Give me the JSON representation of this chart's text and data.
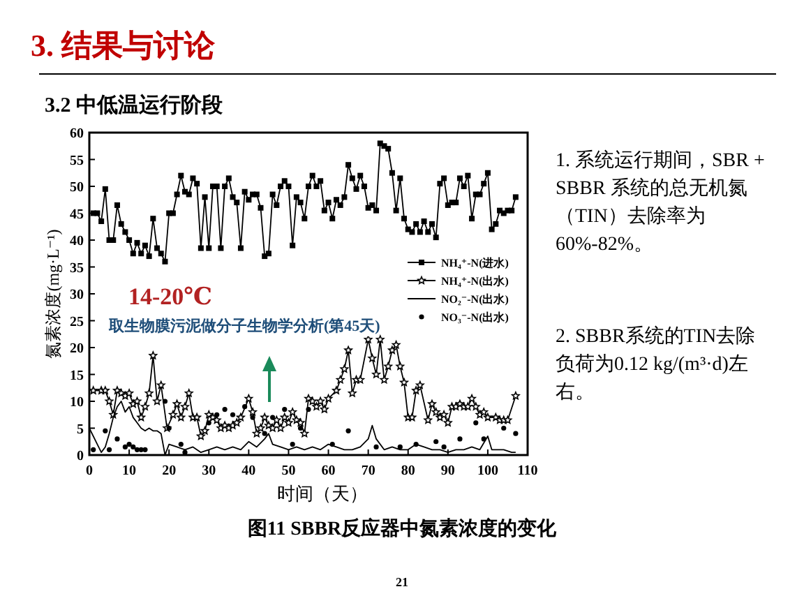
{
  "chart_data": {
    "type": "line",
    "title": "3. 结果与讨论",
    "subtitle": "3.2 中低温运行阶段",
    "xlabel": "时间（天）",
    "ylabel": "氮素浓度(mg·L⁻¹)",
    "xlim": [
      0,
      110
    ],
    "xticks": [
      0,
      10,
      20,
      30,
      40,
      50,
      60,
      70,
      80,
      90,
      100,
      110
    ],
    "ylim": [
      0,
      60
    ],
    "yticks": [
      0,
      5,
      10,
      15,
      20,
      25,
      30,
      35,
      40,
      45,
      50,
      55,
      60
    ],
    "grid": false,
    "legend": "right",
    "series": [
      {
        "name": "NH₄⁺-N(进水)",
        "type": "line",
        "marker": "square",
        "color": "#000000",
        "x": [
          1,
          2,
          3,
          4,
          5,
          6,
          7,
          8,
          9,
          10,
          11,
          12,
          13,
          14,
          15,
          16,
          17,
          18,
          19,
          20,
          21,
          22,
          23,
          24,
          25,
          26,
          27,
          28,
          29,
          30,
          31,
          32,
          33,
          34,
          35,
          36,
          37,
          38,
          39,
          40,
          41,
          42,
          43,
          44,
          45,
          46,
          47,
          48,
          49,
          50,
          51,
          52,
          53,
          54,
          55,
          56,
          57,
          58,
          59,
          60,
          61,
          62,
          63,
          64,
          65,
          66,
          67,
          68,
          69,
          70,
          71,
          72,
          73,
          74,
          75,
          76,
          77,
          78,
          79,
          80,
          81,
          82,
          83,
          84,
          85,
          86,
          87,
          88,
          89,
          90,
          91,
          92,
          93,
          94,
          95,
          96,
          97,
          98,
          99,
          100,
          101,
          102,
          103,
          104,
          105,
          106,
          107
        ],
        "values": [
          45,
          45,
          43.5,
          49.5,
          40,
          40,
          46.5,
          43,
          41.5,
          40,
          37.5,
          39.5,
          37.5,
          39,
          37,
          44,
          38.5,
          37.5,
          36,
          45,
          45,
          48.5,
          52,
          49,
          48.5,
          51.5,
          50.5,
          38.5,
          48,
          38.5,
          50,
          50,
          38.5,
          50,
          51.5,
          48,
          47,
          38.5,
          49,
          47.5,
          48.5,
          48.5,
          46,
          37,
          37.5,
          48.5,
          46.5,
          50,
          51,
          50,
          39,
          48,
          47,
          44,
          50,
          52,
          50,
          51,
          45.5,
          47,
          44,
          47.5,
          46.5,
          48,
          54,
          51.5,
          49.5,
          52,
          50,
          46,
          46.5,
          45.5,
          58,
          57.5,
          57,
          52.5,
          45.5,
          51.5,
          44,
          42,
          41.5,
          43,
          41.5,
          43.5,
          41.5,
          43,
          40.5,
          50.5,
          51.5,
          46.5,
          47,
          47,
          51.5,
          50,
          52,
          44,
          48.5,
          48.5,
          50.5,
          52.5,
          42,
          43,
          45.5,
          45,
          45.5,
          45.5,
          48
        ]
      },
      {
        "name": "NH₄⁺-N(出水)",
        "type": "line",
        "marker": "star",
        "color": "#000000",
        "x": [
          1,
          3,
          4,
          5,
          6,
          7,
          8,
          9,
          10,
          11,
          12,
          13,
          14,
          15,
          16,
          17,
          18,
          19.5,
          21,
          22,
          23,
          24,
          25,
          26,
          27,
          28,
          29,
          30,
          31,
          32,
          33,
          34,
          35,
          36,
          37,
          38,
          40,
          41,
          42,
          43,
          44,
          45,
          46,
          47,
          48,
          49,
          50,
          51,
          52,
          53,
          54,
          55,
          56,
          57,
          58,
          59,
          60,
          62,
          63,
          64,
          65,
          66,
          67,
          68,
          70,
          71,
          72,
          73,
          74,
          75,
          76,
          77,
          78,
          79,
          80,
          81,
          82,
          83,
          85,
          86,
          87,
          88,
          89,
          90,
          91,
          92,
          93,
          94,
          95,
          96,
          97,
          98,
          99,
          100,
          102,
          103,
          104,
          105,
          107
        ],
        "values": [
          12,
          12,
          12,
          10,
          7.5,
          12,
          11.5,
          11,
          11.5,
          9.5,
          10,
          7,
          9,
          11.5,
          18.5,
          10,
          13,
          5,
          7.5,
          9.5,
          7,
          9,
          11.5,
          7,
          7,
          3.5,
          4.5,
          7.5,
          7,
          6.5,
          5,
          5.5,
          5,
          5.5,
          6,
          7,
          10.5,
          8,
          4,
          5,
          7,
          5.5,
          5,
          6.5,
          5,
          7,
          6,
          8,
          6.5,
          6,
          4,
          10.5,
          10,
          9,
          10,
          8.5,
          10.5,
          12,
          14,
          16,
          19.5,
          11.5,
          14,
          14,
          21.5,
          18,
          15,
          21.5,
          14,
          16.5,
          19.5,
          20.5,
          16.5,
          13.5,
          7,
          7,
          12,
          13,
          6.5,
          9.5,
          8,
          7,
          7.5,
          6,
          9,
          9,
          9.5,
          9,
          9,
          10.5,
          9,
          7.5,
          8,
          7,
          7,
          6.5,
          6.5,
          6.5,
          11
        ]
      },
      {
        "name": "NO₂⁻-N(出水)",
        "type": "line",
        "marker": "none",
        "color": "#000000",
        "x": [
          0,
          2,
          3,
          4,
          5,
          6,
          7,
          8,
          9,
          10,
          11,
          12,
          13,
          14,
          15,
          16,
          17,
          18,
          19,
          20,
          22,
          24,
          26,
          28,
          30,
          32,
          34,
          36,
          38,
          40,
          42,
          44,
          45,
          46,
          48,
          50,
          52,
          54,
          56,
          58,
          60,
          62,
          64,
          66,
          68,
          70,
          71,
          72,
          74,
          76,
          78,
          80,
          82,
          84,
          86,
          88,
          90,
          92,
          94,
          96,
          98,
          100,
          101,
          102,
          104,
          106,
          107
        ],
        "values": [
          5,
          2,
          0.5,
          1.5,
          4,
          7,
          9,
          10,
          8,
          9,
          7,
          6,
          5,
          4.5,
          5,
          4.5,
          4.5,
          4,
          0,
          2,
          1.5,
          1,
          1.5,
          0.5,
          1,
          1.5,
          1,
          1.5,
          1,
          2.5,
          1.5,
          3,
          4,
          2,
          1.5,
          1,
          1.5,
          1,
          1.5,
          1,
          2,
          1.5,
          1,
          1,
          1.5,
          3,
          5.5,
          3,
          1,
          1.5,
          1,
          1,
          2,
          1.5,
          1,
          1,
          0.5,
          1,
          1,
          1.5,
          1,
          3.5,
          1,
          1,
          1,
          0.5,
          0.5
        ]
      },
      {
        "name": "NO₃⁻-N(出水)",
        "type": "scatter",
        "marker": "circle",
        "color": "#000000",
        "x": [
          1,
          4,
          5,
          7,
          9,
          10,
          11,
          12,
          13,
          14,
          19,
          20,
          23,
          24,
          30,
          32,
          34,
          36,
          39,
          41,
          44,
          46,
          49,
          51,
          53,
          55,
          61,
          65,
          72,
          78,
          82,
          87,
          89,
          93,
          97,
          99,
          104,
          107
        ],
        "values": [
          1,
          4.5,
          1,
          3,
          1.5,
          2,
          1.5,
          1,
          1,
          1,
          10,
          5,
          2,
          0.5,
          6,
          7.5,
          8.5,
          7.5,
          9,
          7,
          4,
          7,
          8.5,
          2,
          5,
          8.5,
          2,
          4.5,
          1.5,
          1.5,
          2,
          2.5,
          1.5,
          3,
          6,
          3,
          5,
          4
        ]
      }
    ],
    "annotations": [
      "14-20℃",
      "取生物膜污泥做分子生物学分析(第45天)",
      "1. 系统运行期间，SBR + SBBR 系统的总无机氮（TIN）去除率为60%-82%。",
      "2. SBBR系统的TIN去除负荷为0.12 kg/(m³·d)左右。",
      "图11 SBBR反应器中氮素浓度的变化",
      "21"
    ]
  }
}
